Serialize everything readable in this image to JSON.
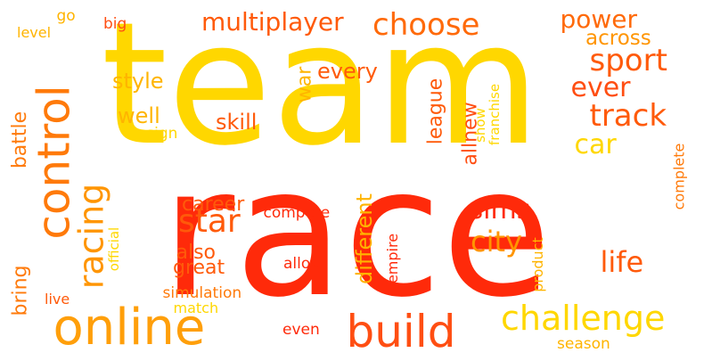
{
  "words": [
    {
      "text": "team",
      "color": "#FFD700"
    },
    {
      "text": "race",
      "color": "#FF2A0A"
    },
    {
      "text": "online",
      "color": "#FF9F0A"
    },
    {
      "text": "build",
      "color": "#FF4E12"
    },
    {
      "text": "control",
      "color": "#FF7A0A"
    },
    {
      "text": "challenge",
      "color": "#FFD700"
    },
    {
      "text": "choose",
      "color": "#FF6A0A"
    },
    {
      "text": "sport",
      "color": "#FF5A0A"
    },
    {
      "text": "track",
      "color": "#FF5A0A"
    },
    {
      "text": "racing",
      "color": "#FF9500"
    },
    {
      "text": "multiplayer",
      "color": "#FF5A0A"
    },
    {
      "text": "power",
      "color": "#FF6A0A"
    },
    {
      "text": "city",
      "color": "#FF9500"
    },
    {
      "text": "star",
      "color": "#FF5A0A"
    },
    {
      "text": "life",
      "color": "#FF5A0A"
    },
    {
      "text": "ever",
      "color": "#FF4E12"
    },
    {
      "text": "car",
      "color": "#FFD700"
    },
    {
      "text": "sims",
      "color": "#FF2A0A"
    },
    {
      "text": "across",
      "color": "#FF9500"
    },
    {
      "text": "different",
      "color": "#FFB400"
    },
    {
      "text": "style",
      "color": "#FFB400"
    },
    {
      "text": "well",
      "color": "#FFB400"
    },
    {
      "text": "skill",
      "color": "#FF5A0A"
    },
    {
      "text": "every",
      "color": "#FF5A0A"
    },
    {
      "text": "career",
      "color": "#FF5A0A"
    },
    {
      "text": "also",
      "color": "#FF5A0A"
    },
    {
      "text": "great",
      "color": "#FF5A0A"
    },
    {
      "text": "league",
      "color": "#FF5A0A"
    },
    {
      "text": "allnew",
      "color": "#FF4E12"
    },
    {
      "text": "battle",
      "color": "#FF7A0A"
    },
    {
      "text": "bring",
      "color": "#FF7A0A"
    },
    {
      "text": "war",
      "color": "#FFB400"
    },
    {
      "text": "go",
      "color": "#FFB400"
    },
    {
      "text": "big",
      "color": "#FF4E12"
    },
    {
      "text": "level",
      "color": "#FFB400"
    },
    {
      "text": "design",
      "color": "#FFD700"
    },
    {
      "text": "show",
      "color": "#FFD700"
    },
    {
      "text": "franchise",
      "color": "#FFD700"
    },
    {
      "text": "compete",
      "color": "#FF2A0A"
    },
    {
      "text": "allow",
      "color": "#FF2A0A"
    },
    {
      "text": "empire",
      "color": "#FF2A0A"
    },
    {
      "text": "simulation",
      "color": "#FF7A0A"
    },
    {
      "text": "match",
      "color": "#FFD700"
    },
    {
      "text": "live",
      "color": "#FF5A0A"
    },
    {
      "text": "official",
      "color": "#FFD700"
    },
    {
      "text": "product",
      "color": "#FFB400"
    },
    {
      "text": "even",
      "color": "#FF2A0A"
    },
    {
      "text": "complete",
      "color": "#FF7A0A"
    },
    {
      "text": "season",
      "color": "#FFB400"
    }
  ]
}
